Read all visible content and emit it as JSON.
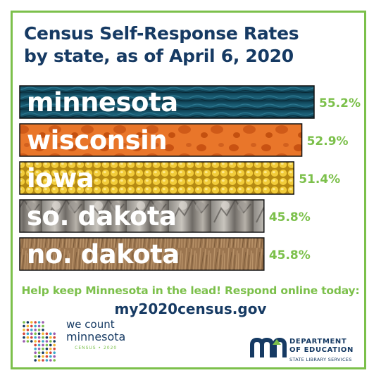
{
  "header": {
    "title_line1": "Census Self-Response Rates",
    "title_line2": "by state, as of April 6, 2020"
  },
  "chart_data": {
    "type": "bar",
    "orientation": "horizontal",
    "categories": [
      "minnesota",
      "wisconsin",
      "iowa",
      "so. dakota",
      "no. dakota"
    ],
    "values": [
      55.2,
      52.9,
      51.4,
      45.8,
      45.8
    ],
    "value_labels": [
      "55.2%",
      "52.9%",
      "51.4%",
      "45.8%",
      "45.8%"
    ],
    "unit": "%",
    "legend": "none",
    "grid": false,
    "bar_textures": [
      "water",
      "cheese",
      "corn",
      "mount-rushmore",
      "prairie-grass"
    ],
    "colors": {
      "title": "#163a63",
      "value_labels": "#7cc04b",
      "border": "#7cc04b"
    }
  },
  "footer": {
    "call_to_action": "Help keep Minnesota in the lead! Respond online today:",
    "url": "my2020census.gov"
  },
  "logos": {
    "we_count": {
      "line1": "we count",
      "line2": "minnesota",
      "line3": "CENSUS • 2020",
      "icon": "minnesota-map-dots-icon"
    },
    "department": {
      "line1": "DEPARTMENT",
      "line2": "OF EDUCATION",
      "line3": "STATE LIBRARY SERVICES",
      "icon": "mn-logo-icon"
    }
  }
}
